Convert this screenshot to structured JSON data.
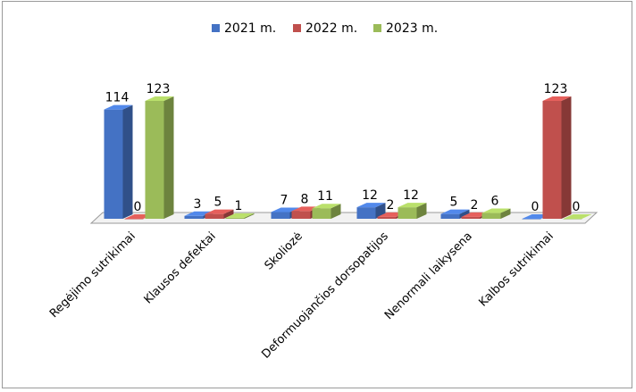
{
  "chart_data": {
    "type": "bar",
    "categories": [
      "Regėjimo sutrikimai",
      "Klausos defektai",
      "Skoliozė",
      "Deformuojančios dorsopatijos",
      "Nenormali laikysena",
      "Kalbos sutrikimai"
    ],
    "series": [
      {
        "name": "2021 m.",
        "color": "#4472c4",
        "values": [
          114,
          3,
          7,
          12,
          5,
          0
        ]
      },
      {
        "name": "2022 m.",
        "color": "#c0504d",
        "values": [
          0,
          5,
          8,
          2,
          2,
          123
        ]
      },
      {
        "name": "2023 m.",
        "color": "#9bbb59",
        "values": [
          123,
          1,
          11,
          12,
          6,
          0
        ]
      }
    ],
    "ylim": [
      0,
      123
    ],
    "legend_position": "top-center",
    "grid": false,
    "style": "3d-clustered-column"
  }
}
